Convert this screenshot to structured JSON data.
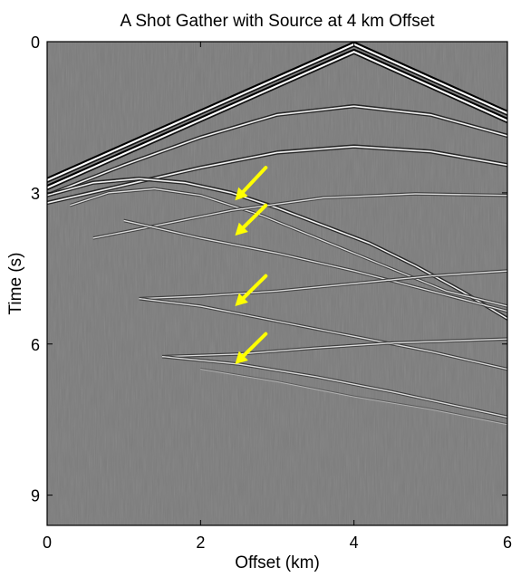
{
  "chart_data": {
    "type": "heatmap",
    "title": "A Shot Gather with Source at 4 km Offset",
    "xlabel": "Offset (km)",
    "ylabel": "Time (s)",
    "xlim": [
      0,
      6
    ],
    "ylim": [
      9.6,
      0
    ],
    "y_direction": "down",
    "colormap": "gray",
    "background_color": "#7c7c7c",
    "grid": false,
    "legend": "none",
    "x_ticks": [
      {
        "value": 0,
        "label": "0"
      },
      {
        "value": 2,
        "label": "2"
      },
      {
        "value": 4,
        "label": "4"
      },
      {
        "value": 6,
        "label": "6"
      }
    ],
    "y_ticks": [
      {
        "value": 0,
        "label": "0"
      },
      {
        "value": 3,
        "label": "3"
      },
      {
        "value": 6,
        "label": "6"
      },
      {
        "value": 9,
        "label": "9"
      }
    ],
    "events": [
      {
        "kind": "direct-wave",
        "style": "bold",
        "points": [
          [
            0,
            2.75
          ],
          [
            4,
            0.05
          ],
          [
            6,
            1.42
          ]
        ]
      },
      {
        "kind": "direct-wave",
        "style": "bold",
        "points": [
          [
            0,
            2.9
          ],
          [
            4,
            0.2
          ],
          [
            6,
            1.57
          ]
        ]
      },
      {
        "kind": "reflection",
        "style": "strong",
        "points": [
          [
            0.0,
            3.05
          ],
          [
            1.0,
            2.45
          ],
          [
            2.0,
            1.9
          ],
          [
            3.0,
            1.45
          ],
          [
            4.0,
            1.28
          ],
          [
            5.0,
            1.45
          ],
          [
            6.0,
            1.87
          ]
        ]
      },
      {
        "kind": "reflection",
        "style": "strong",
        "points": [
          [
            0.0,
            3.2
          ],
          [
            1.0,
            2.85
          ],
          [
            2.0,
            2.5
          ],
          [
            3.0,
            2.2
          ],
          [
            4.0,
            2.08
          ],
          [
            5.0,
            2.18
          ],
          [
            6.0,
            2.45
          ]
        ]
      },
      {
        "kind": "diffraction",
        "style": "strong",
        "points": [
          [
            0.0,
            3.05
          ],
          [
            0.6,
            2.8
          ],
          [
            1.2,
            2.72
          ],
          [
            1.8,
            2.8
          ],
          [
            2.4,
            3.0
          ],
          [
            3.0,
            3.3
          ],
          [
            3.6,
            3.65
          ],
          [
            4.2,
            4.0
          ],
          [
            4.8,
            4.45
          ],
          [
            5.4,
            4.95
          ],
          [
            6.0,
            5.5
          ]
        ]
      },
      {
        "kind": "diffraction",
        "style": "medium",
        "points": [
          [
            0.3,
            3.25
          ],
          [
            0.8,
            3.0
          ],
          [
            1.4,
            2.92
          ],
          [
            2.0,
            3.05
          ],
          [
            2.8,
            3.45
          ],
          [
            3.6,
            3.95
          ],
          [
            4.4,
            4.45
          ],
          [
            5.2,
            4.95
          ],
          [
            6.0,
            5.25
          ]
        ]
      },
      {
        "kind": "reflection",
        "style": "medium",
        "points": [
          [
            0.6,
            3.9
          ],
          [
            1.2,
            3.72
          ],
          [
            2.4,
            3.35
          ],
          [
            3.6,
            3.1
          ],
          [
            4.8,
            3.02
          ],
          [
            6.0,
            3.05
          ]
        ]
      },
      {
        "kind": "reflection",
        "style": "medium",
        "points": [
          [
            1.0,
            3.55
          ],
          [
            2.0,
            3.9
          ],
          [
            3.0,
            4.2
          ],
          [
            4.0,
            4.55
          ],
          [
            5.0,
            4.95
          ],
          [
            6.0,
            5.35
          ]
        ]
      },
      {
        "kind": "reflection",
        "style": "medium",
        "points": [
          [
            1.2,
            5.1
          ],
          [
            2.0,
            5.05
          ],
          [
            3.0,
            4.95
          ],
          [
            4.0,
            4.8
          ],
          [
            5.0,
            4.65
          ],
          [
            6.0,
            4.55
          ]
        ]
      },
      {
        "kind": "reflection",
        "style": "medium",
        "points": [
          [
            1.2,
            5.1
          ],
          [
            2.0,
            5.25
          ],
          [
            3.0,
            5.55
          ],
          [
            4.0,
            5.85
          ],
          [
            5.0,
            6.15
          ],
          [
            6.0,
            6.5
          ]
        ]
      },
      {
        "kind": "reflection",
        "style": "medium",
        "points": [
          [
            1.5,
            6.25
          ],
          [
            2.5,
            6.2
          ],
          [
            3.5,
            6.08
          ],
          [
            4.5,
            5.98
          ],
          [
            6.0,
            5.9
          ]
        ]
      },
      {
        "kind": "reflection",
        "style": "medium",
        "points": [
          [
            1.5,
            6.25
          ],
          [
            2.5,
            6.4
          ],
          [
            3.5,
            6.65
          ],
          [
            4.5,
            6.95
          ],
          [
            6.0,
            7.45
          ]
        ]
      },
      {
        "kind": "reflection",
        "style": "faint",
        "points": [
          [
            2.0,
            6.5
          ],
          [
            3.0,
            6.75
          ],
          [
            4.0,
            7.05
          ],
          [
            5.0,
            7.3
          ],
          [
            6.0,
            7.6
          ]
        ]
      }
    ],
    "annotations": [
      {
        "kind": "arrow",
        "color": "#ffff00",
        "from": [
          2.85,
          2.5
        ],
        "to": [
          2.45,
          3.15
        ]
      },
      {
        "kind": "arrow",
        "color": "#ffff00",
        "from": [
          2.85,
          3.25
        ],
        "to": [
          2.45,
          3.85
        ]
      },
      {
        "kind": "arrow",
        "color": "#ffff00",
        "from": [
          2.85,
          4.65
        ],
        "to": [
          2.45,
          5.25
        ]
      },
      {
        "kind": "arrow",
        "color": "#ffff00",
        "from": [
          2.85,
          5.8
        ],
        "to": [
          2.45,
          6.4
        ]
      }
    ]
  }
}
